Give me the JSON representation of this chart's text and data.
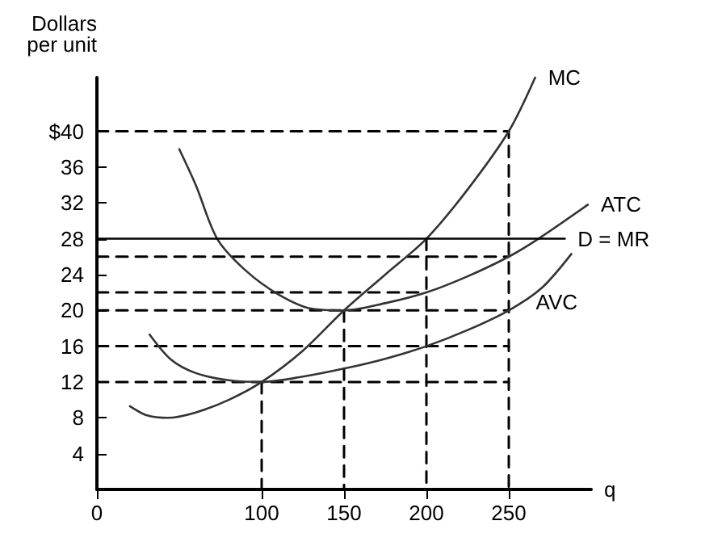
{
  "chart_data": {
    "type": "line",
    "ylabel": "Dollars\nper unit",
    "xlabel": "q",
    "xlim": [
      0,
      300
    ],
    "ylim": [
      0,
      46
    ],
    "xticks": [
      0,
      100,
      150,
      200,
      250
    ],
    "yticks": [
      4,
      8,
      12,
      16,
      20,
      24,
      28,
      32,
      36,
      {
        "value": 40,
        "label": "$40"
      }
    ],
    "grid": false,
    "legend": false,
    "marker": "none",
    "series": [
      {
        "name": "MC",
        "color": "#333333",
        "line_style": "solid",
        "x": [
          20,
          30,
          43,
          60,
          80,
          100,
          125,
          150,
          175,
          200,
          225,
          250,
          266
        ],
        "values": [
          9.3,
          8.3,
          8,
          8.6,
          10,
          12,
          15.5,
          20,
          24,
          28,
          33.5,
          40,
          46
        ]
      },
      {
        "name": "ATC",
        "color": "#333333",
        "line_style": "solid",
        "x": [
          50,
          60,
          73,
          90,
          110,
          130,
          150,
          175,
          200,
          225,
          250,
          268,
          298
        ],
        "values": [
          38,
          34,
          28,
          24.5,
          21.8,
          20.2,
          20,
          20.8,
          22,
          23.8,
          26,
          28,
          31.8
        ]
      },
      {
        "name": "AVC",
        "color": "#333333",
        "line_style": "solid",
        "x": [
          32,
          45,
          60,
          80,
          100,
          125,
          150,
          175,
          200,
          225,
          250,
          270,
          288
        ],
        "values": [
          17.3,
          14.5,
          13,
          12.2,
          12,
          12.6,
          13.5,
          14.6,
          16,
          17.8,
          20,
          22.5,
          26.3
        ]
      },
      {
        "name": "D = MR",
        "color": "#000000",
        "line_style": "solid",
        "x": [
          0,
          284
        ],
        "values": [
          28,
          28
        ]
      },
      {
        "color": "#000000",
        "line_style": "dashed",
        "x": [
          0,
          250,
          250
        ],
        "values": [
          40,
          40,
          0
        ]
      },
      {
        "color": "#000000",
        "line_style": "dashed",
        "x": [
          0,
          250
        ],
        "values": [
          26,
          26
        ]
      },
      {
        "color": "#000000",
        "line_style": "dashed",
        "x": [
          200,
          200
        ],
        "values": [
          28,
          0
        ]
      },
      {
        "color": "#000000",
        "line_style": "dashed",
        "x": [
          0,
          200
        ],
        "values": [
          22,
          22
        ]
      },
      {
        "color": "#000000",
        "line_style": "dashed",
        "x": [
          0,
          250
        ],
        "values": [
          20,
          20
        ]
      },
      {
        "color": "#000000",
        "line_style": "dashed",
        "x": [
          150,
          150
        ],
        "values": [
          20,
          0
        ]
      },
      {
        "color": "#000000",
        "line_style": "dashed",
        "x": [
          0,
          250
        ],
        "values": [
          16,
          16
        ]
      },
      {
        "color": "#000000",
        "line_style": "dashed",
        "x": [
          0,
          250
        ],
        "values": [
          12,
          12
        ]
      },
      {
        "color": "#000000",
        "line_style": "dashed",
        "x": [
          100,
          100
        ],
        "values": [
          12,
          0
        ]
      }
    ]
  }
}
